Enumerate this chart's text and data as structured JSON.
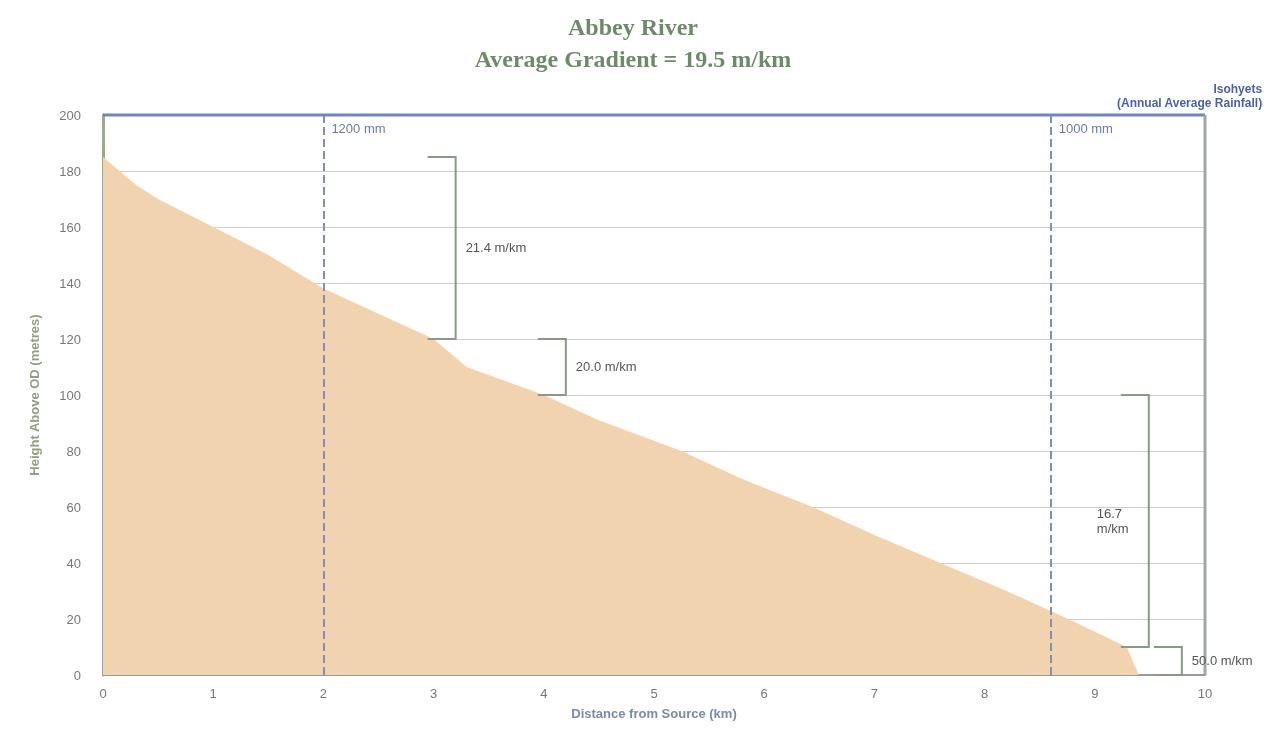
{
  "chart_data": {
    "type": "area",
    "title": "Abbey River",
    "subtitle": "Average Gradient = 19.5 m/km",
    "xlabel": "Distance from Source (km)",
    "ylabel": "Height Above OD (metres)",
    "x": [
      0,
      0.3,
      0.5,
      1,
      1.5,
      2,
      2.5,
      3,
      3.3,
      4,
      4.5,
      5.25,
      5.8,
      6.44,
      7,
      7.6,
      8.2,
      8.76,
      9.29,
      9.4
    ],
    "series": [
      {
        "color": "#f2d3b0",
        "values": [
          185,
          175,
          170,
          160,
          150,
          138,
          129,
          120,
          110,
          100,
          91,
          80,
          70,
          60,
          50,
          40,
          30,
          20,
          10,
          0
        ]
      }
    ],
    "xlim": [
      0,
      10
    ],
    "xticks": [
      0,
      1,
      2,
      3,
      4,
      5,
      6,
      7,
      8,
      9,
      10
    ],
    "ylim": [
      0,
      200
    ],
    "yticks": [
      0,
      20,
      40,
      60,
      80,
      100,
      120,
      140,
      160,
      180,
      200
    ],
    "grid": "y",
    "ref_lines": [
      {
        "axis": "x",
        "value": 2,
        "label": "1200 mm",
        "color": "#8090b0",
        "line_style": "dashed"
      },
      {
        "axis": "x",
        "value": 8.6,
        "label": "1000 mm",
        "color": "#8090b0",
        "line_style": "dashed"
      }
    ],
    "annotations": [
      "Isohyets (Annual Average Rainfall)",
      "21.4 m/km",
      "20.0 m/km",
      "16.7 m/km",
      "50.0 m/km"
    ]
  }
}
